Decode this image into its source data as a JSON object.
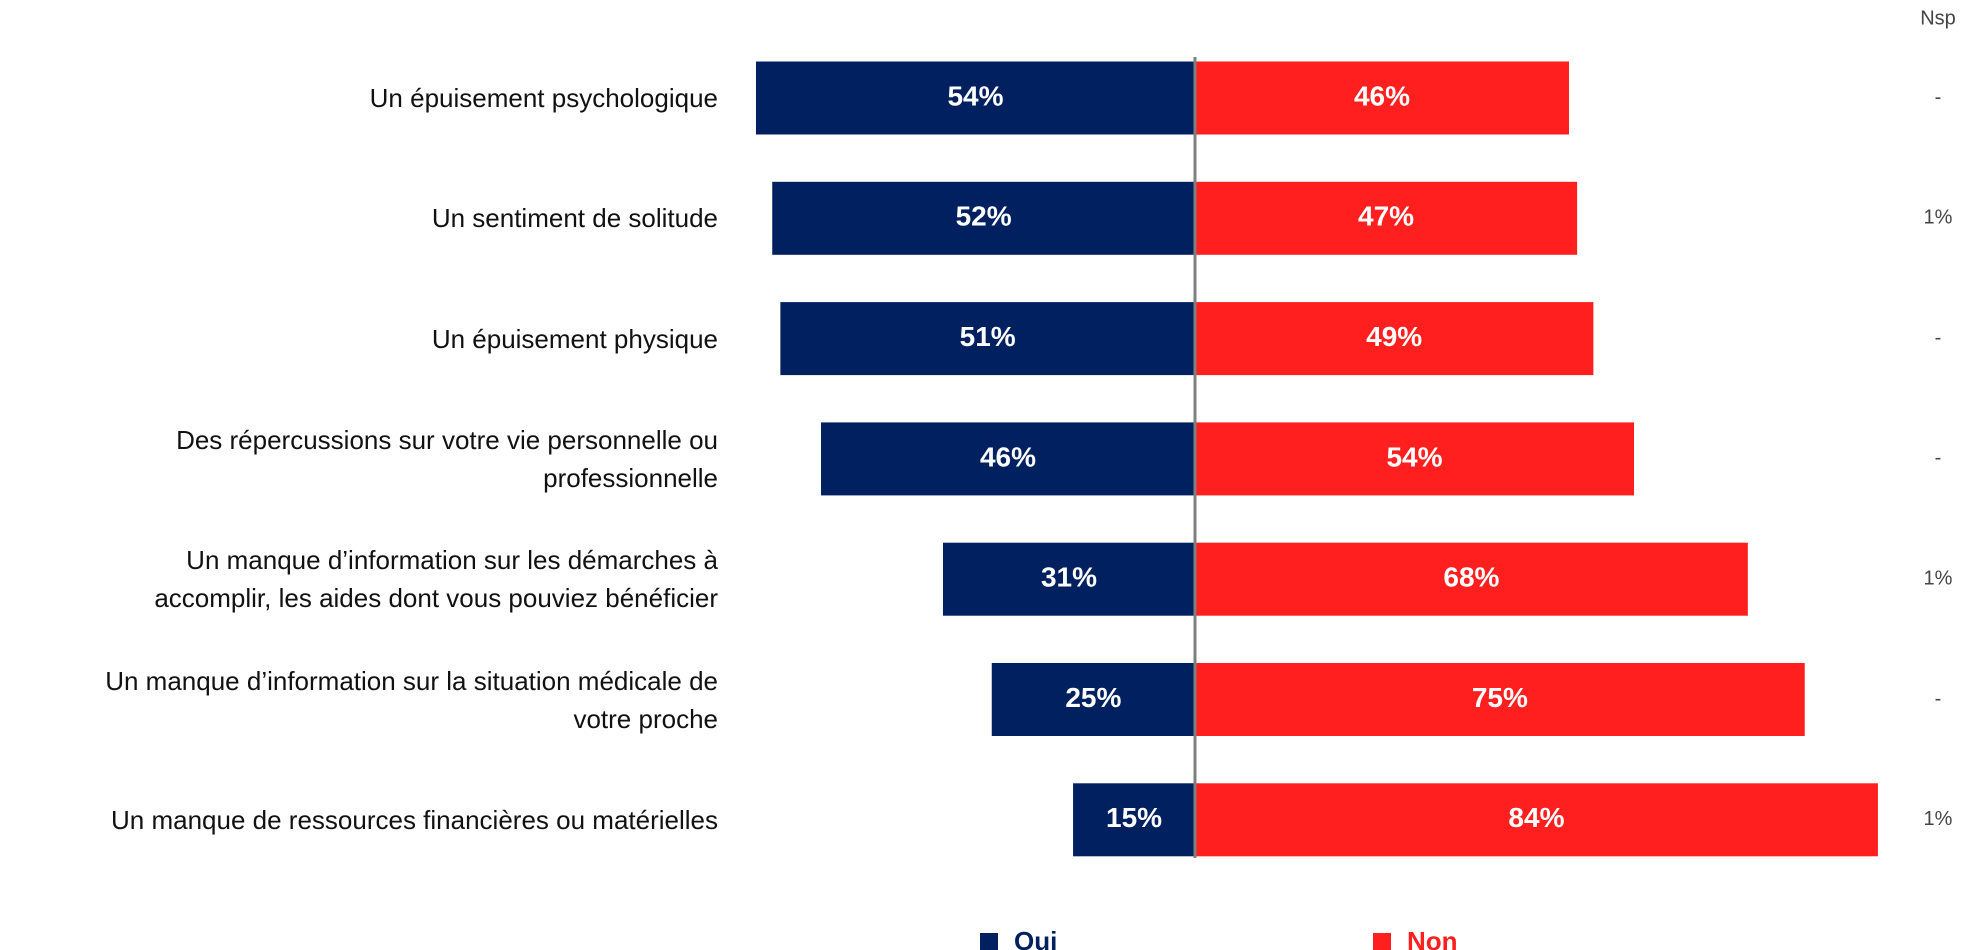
{
  "chart_data": {
    "type": "diverging_bar",
    "categories": [
      "Un épuisement psychologique",
      "Un sentiment de solitude",
      "Un épuisement physique",
      "Des répercussions sur votre vie personnelle ou\nprofessionnelle",
      "Un manque d’information sur les démarches à\naccomplir, les aides dont vous pouviez bénéficier",
      "Un manque d’information sur la situation médicale de\nvotre proche",
      "Un manque de ressources financières ou matérielles"
    ],
    "series": [
      {
        "name": "Oui",
        "color": "#002060",
        "values": [
          54,
          52,
          51,
          46,
          31,
          25,
          15
        ],
        "value_labels": [
          "54%",
          "52%",
          "51%",
          "46%",
          "31%",
          "25%",
          "15%"
        ]
      },
      {
        "name": "Non",
        "color": "#ff1f1f",
        "values": [
          46,
          47,
          49,
          54,
          68,
          75,
          84
        ],
        "value_labels": [
          "46%",
          "47%",
          "49%",
          "54%",
          "68%",
          "75%",
          "84%"
        ]
      }
    ],
    "nsp": {
      "title": "Nsp",
      "values": [
        null,
        1,
        null,
        null,
        1,
        null,
        1
      ],
      "value_labels": [
        "-",
        "1%",
        "-",
        "-",
        "1%",
        "-",
        "1%"
      ]
    }
  }
}
